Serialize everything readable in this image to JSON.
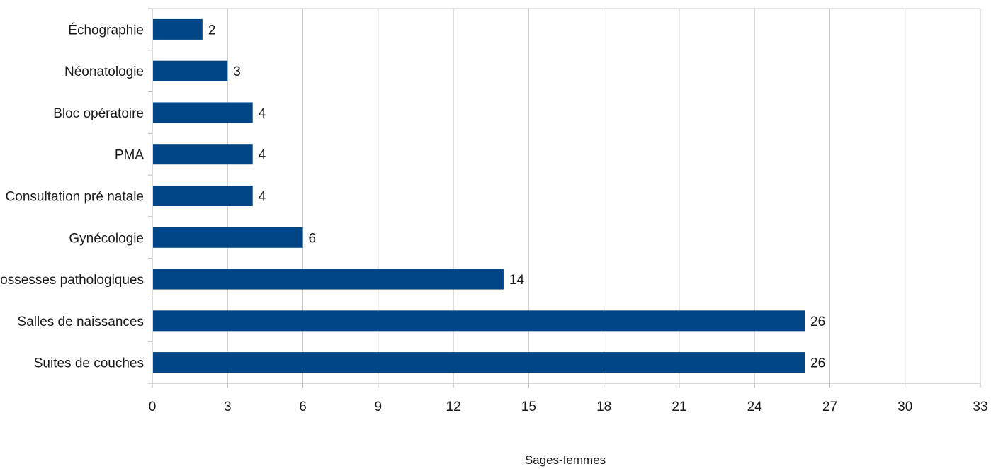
{
  "chart_data": {
    "type": "bar",
    "orientation": "horizontal",
    "title": "",
    "xlabel": "Sages-femmes",
    "ylabel": "",
    "categories": [
      "Échographie",
      "Néonatologie",
      "Bloc opératoire",
      "PMA",
      "Consultation pré natale",
      "Gynécologie",
      "Grossesses pathologiques",
      "Salles de naissances",
      "Suites de couches"
    ],
    "values": [
      2,
      3,
      4,
      4,
      4,
      6,
      14,
      26,
      26
    ],
    "data_labels": [
      "2",
      "3",
      "4",
      "4",
      "4",
      "6",
      "14",
      "26",
      "26"
    ],
    "xlim": [
      0,
      33
    ],
    "x_ticks": [
      "0",
      "3",
      "6",
      "9",
      "12",
      "15",
      "18",
      "21",
      "24",
      "27",
      "30",
      "33"
    ],
    "grid": true,
    "legend": "none",
    "bar_color": "#004586"
  }
}
